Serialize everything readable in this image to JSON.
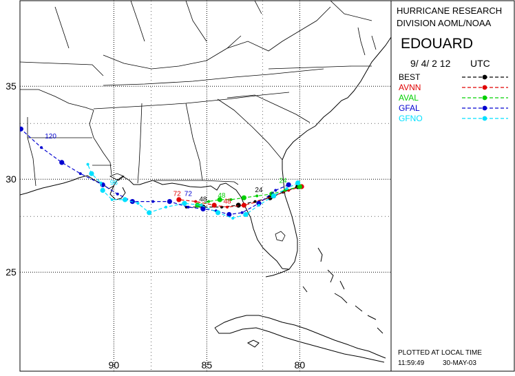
{
  "map": {
    "lon_labels": [
      "90",
      "85",
      "80"
    ],
    "lat_labels": [
      "35",
      "30",
      "25"
    ],
    "lon_ticks": [
      90,
      85,
      80
    ],
    "lat_ticks": [
      35,
      30,
      25
    ]
  },
  "panel": {
    "org_line1": "HURRICANE RESEARCH",
    "org_line2": "DIVISION AOML/NOAA",
    "storm_name": "EDOUARD",
    "date": "9/ 4/ 2 12",
    "utc": "UTC",
    "footer_line1": "PLOTTED AT LOCAL TIME",
    "footer_time": "11:59:49",
    "footer_date": "30-MAY-03"
  },
  "colors": {
    "BEST": "#000000",
    "AVNN": "#e00000",
    "AVAL": "#00d000",
    "GFAL": "#0000d0",
    "GFNO": "#00e0ff"
  },
  "legend": [
    {
      "key": "BEST",
      "label": "BEST"
    },
    {
      "key": "AVNN",
      "label": "AVNN"
    },
    {
      "key": "AVAL",
      "label": "AVAL"
    },
    {
      "key": "GFAL",
      "label": "GFAL"
    },
    {
      "key": "GFNO",
      "label": "GFNO"
    }
  ],
  "tracks": [
    {
      "key": "BEST",
      "points": [
        [
          -80.1,
          29.6
        ],
        [
          -80.9,
          29.3
        ],
        [
          -81.6,
          29.0
        ],
        [
          -82.4,
          28.8
        ],
        [
          -83.3,
          28.6
        ],
        [
          -84.2,
          28.5
        ],
        [
          -85.2,
          28.5
        ],
        [
          -86.1,
          28.5
        ]
      ]
    },
    {
      "key": "AVNN",
      "points": [
        [
          -79.9,
          29.6
        ],
        [
          -80.6,
          29.4
        ],
        [
          -81.4,
          29.1
        ],
        [
          -82.2,
          28.8
        ],
        [
          -83.0,
          28.6
        ],
        [
          -83.9,
          28.5
        ],
        [
          -84.6,
          28.6
        ],
        [
          -85.6,
          28.8
        ],
        [
          -86.5,
          28.9
        ]
      ]
    },
    {
      "key": "AVAL",
      "points": [
        [
          -80.0,
          29.6
        ],
        [
          -80.8,
          29.4
        ],
        [
          -81.5,
          29.2
        ],
        [
          -82.3,
          29.1
        ],
        [
          -83.0,
          29.0
        ],
        [
          -83.7,
          28.9
        ],
        [
          -84.3,
          28.9
        ],
        [
          -84.9,
          28.8
        ],
        [
          -85.5,
          28.6
        ]
      ]
    },
    {
      "key": "GFAL",
      "points": [
        [
          -80.6,
          29.7
        ],
        [
          -81.3,
          29.4
        ],
        [
          -82.2,
          28.7
        ],
        [
          -83.1,
          28.2
        ],
        [
          -83.8,
          28.1
        ],
        [
          -84.5,
          28.3
        ],
        [
          -85.2,
          28.4
        ],
        [
          -86.0,
          28.5
        ],
        [
          -87.0,
          28.8
        ],
        [
          -87.9,
          28.8
        ],
        [
          -89.0,
          28.8
        ],
        [
          -89.8,
          29.2
        ],
        [
          -90.6,
          29.7
        ],
        [
          -91.8,
          30.3
        ],
        [
          -92.8,
          30.9
        ],
        [
          -93.9,
          31.7
        ],
        [
          -95.0,
          32.7
        ]
      ]
    },
    {
      "key": "GFNO",
      "points": [
        [
          -80.1,
          29.8
        ],
        [
          -80.7,
          29.5
        ],
        [
          -81.4,
          29.1
        ],
        [
          -82.2,
          28.6
        ],
        [
          -82.9,
          28.1
        ],
        [
          -83.6,
          27.9
        ],
        [
          -84.4,
          28.2
        ],
        [
          -85.3,
          28.6
        ],
        [
          -86.2,
          28.7
        ],
        [
          -87.2,
          28.5
        ],
        [
          -88.1,
          28.2
        ],
        [
          -88.7,
          28.7
        ],
        [
          -89.4,
          28.9
        ],
        [
          -90.1,
          28.9
        ],
        [
          -90.6,
          29.4
        ],
        [
          -90.7,
          29.8
        ],
        [
          -91.2,
          30.3
        ],
        [
          -91.4,
          30.8
        ]
      ]
    }
  ],
  "hour_labels": [
    {
      "key": "GFAL",
      "text": "120",
      "lon": -93.4,
      "lat": 32.2
    },
    {
      "key": "AVNN",
      "text": "72",
      "lon": -86.6,
      "lat": 29.1
    },
    {
      "key": "GFAL",
      "text": "72",
      "lon": -86.0,
      "lat": 29.1
    },
    {
      "key": "BEST",
      "text": "48",
      "lon": -85.2,
      "lat": 28.8
    },
    {
      "key": "AVAL",
      "text": "48",
      "lon": -84.2,
      "lat": 29.0
    },
    {
      "key": "AVNN",
      "text": "48",
      "lon": -83.9,
      "lat": 28.7
    },
    {
      "key": "BEST",
      "text": "24",
      "lon": -82.2,
      "lat": 29.3
    },
    {
      "key": "AVAL",
      "text": "24",
      "lon": -80.9,
      "lat": 29.8
    },
    {
      "key": "GFNO",
      "text": "96",
      "lon": -90.0,
      "lat": 29.7
    }
  ]
}
